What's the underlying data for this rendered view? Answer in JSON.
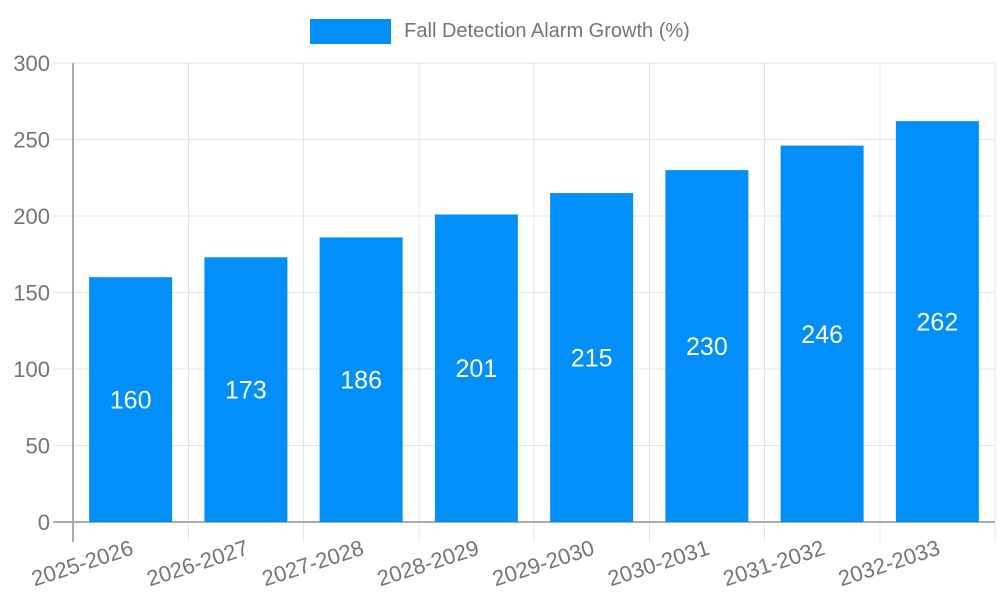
{
  "chart_data": {
    "type": "bar",
    "title": "Fall Detection Alarm Growth (%)",
    "legend_position": "top",
    "grid": true,
    "categories": [
      "2025-2026",
      "2026-2027",
      "2027-2028",
      "2028-2029",
      "2029-2030",
      "2030-2031",
      "2031-2032",
      "2032-2033"
    ],
    "values": [
      160,
      173,
      186,
      201,
      215,
      230,
      246,
      262
    ],
    "xlabel": "",
    "ylabel": "",
    "ylim": [
      0,
      300
    ],
    "yticks": [
      0,
      50,
      100,
      150,
      200,
      250,
      300
    ],
    "colors": {
      "bar": "#038FFA",
      "grid": "#e4e4e4",
      "axis": "#ababab",
      "tick_text": "#757575",
      "value_label": "#ffffff",
      "background": "#ffffff"
    }
  }
}
